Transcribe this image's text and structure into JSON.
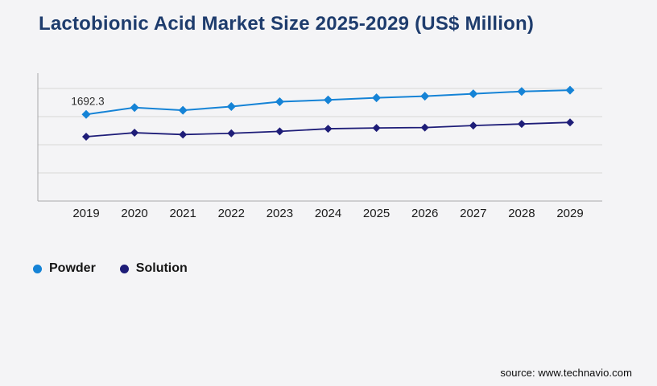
{
  "header": {
    "title": "Lactobionic Acid Market Size 2025-2029 (US$ Million)",
    "title_color": "#1e3c6d"
  },
  "footer": {
    "source": "source: www.technavio.com"
  },
  "chart_data": {
    "type": "line",
    "title": "Lactobionic Acid Market Size 2025-2029 (US$ Million)",
    "categories": [
      "2019",
      "2020",
      "2021",
      "2022",
      "2023",
      "2024",
      "2025",
      "2026",
      "2027",
      "2028",
      "2029"
    ],
    "series": [
      {
        "name": "Powder",
        "color": "#1583d6",
        "marker": "diamond",
        "values": [
          1692.3,
          1827,
          1774,
          1847,
          1941,
          1976,
          2018,
          2049,
          2096,
          2142,
          2166
        ]
      },
      {
        "name": "Solution",
        "color": "#1e1d78",
        "marker": "diamond",
        "values": [
          1257,
          1335,
          1299,
          1324,
          1361,
          1413,
          1428,
          1436,
          1475,
          1506,
          1537
        ]
      }
    ],
    "ylim": [
      0,
      2200
    ],
    "y_gridline_count": 5,
    "grid": "horizontal-only",
    "y_axis_labels_visible": false,
    "legend_position": "bottom-left",
    "point_label": {
      "series": "Powder",
      "category": "2019",
      "text": "1692.3"
    },
    "xlabel": "",
    "ylabel": "",
    "colors": {
      "gridline": "#d7d7d7",
      "axis_line": "#a9a9a9",
      "tick_label": "#1a1a1a",
      "point_label": "#2e2e2e",
      "background": "#f4f4f6"
    }
  }
}
